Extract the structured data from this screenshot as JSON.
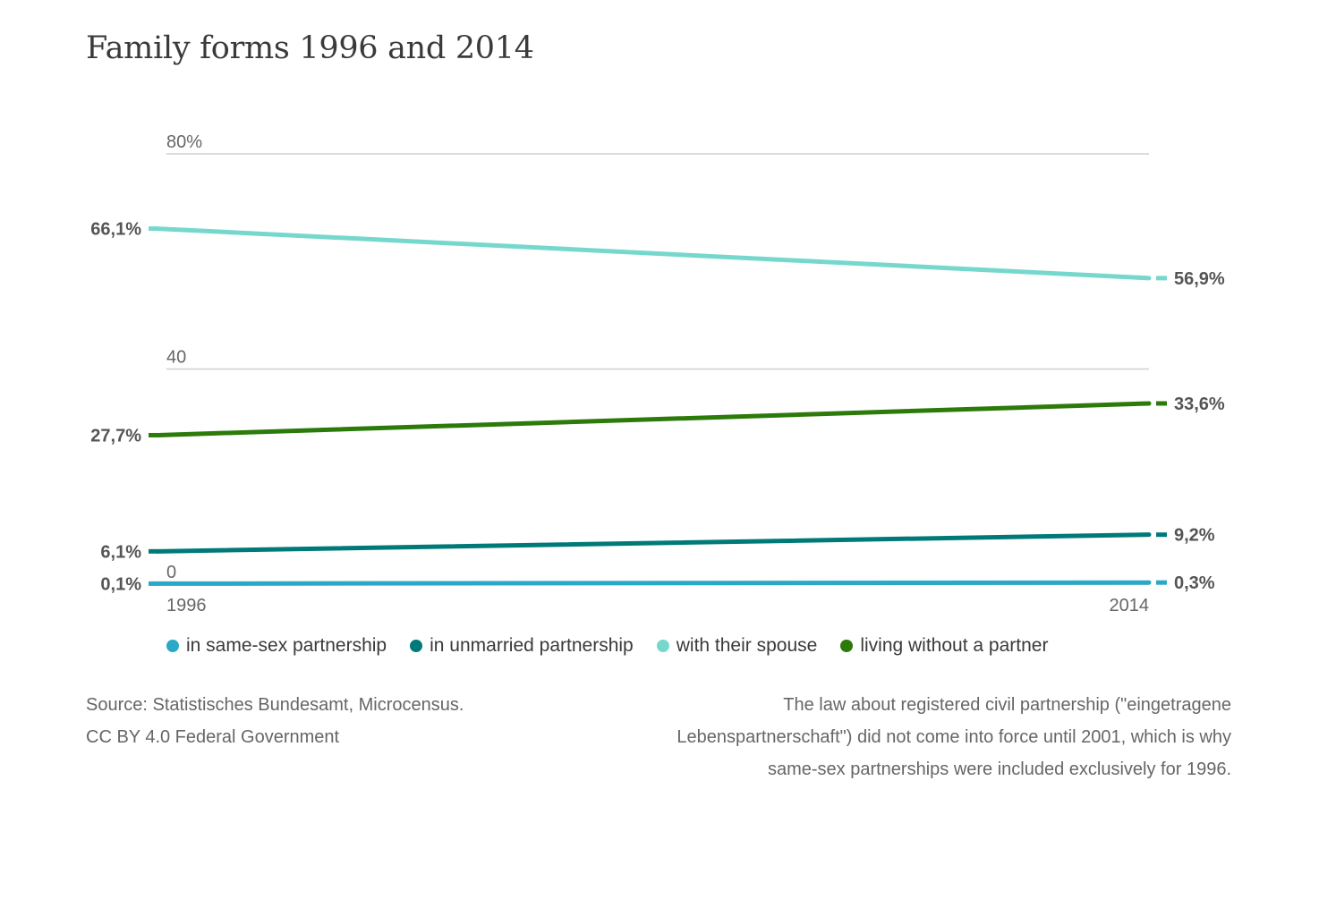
{
  "title": "Family forms 1996 and 2014",
  "chart_data": {
    "type": "line",
    "title": "Family forms 1996 and 2014",
    "x": [
      "1996",
      "2014"
    ],
    "ylim": [
      0,
      80
    ],
    "y_ticks": [
      {
        "value": 80,
        "label": "80%"
      },
      {
        "value": 40,
        "label": "40"
      },
      {
        "value": 0,
        "label": "0"
      }
    ],
    "grid": true,
    "legend_placement": "bottom",
    "series": [
      {
        "name": "in same-sex partnership",
        "color": "#2aa8c8",
        "values": [
          0.1,
          0.3
        ],
        "labels": [
          "0,1%",
          "0,3%"
        ]
      },
      {
        "name": "in unmarried partnership",
        "color": "#007a78",
        "values": [
          6.1,
          9.2
        ],
        "labels": [
          "6,1%",
          "9,2%"
        ]
      },
      {
        "name": "with their spouse",
        "color": "#76d8cc",
        "values": [
          66.1,
          56.9
        ],
        "labels": [
          "66,1%",
          "56,9%"
        ]
      },
      {
        "name": "living without a partner",
        "color": "#2c7a0a",
        "values": [
          27.7,
          33.6
        ],
        "labels": [
          "27,7%",
          "33,6%"
        ]
      }
    ]
  },
  "source": {
    "line1": "Source: Statistisches Bundesamt, Microcensus.",
    "line2": "CC BY 4.0 Federal Government"
  },
  "note": "The law about registered civil partnership (\"eingetragene Lebenspartnerschaft\") did not come into force until 2001, which is why same-sex partnerships were included exclusively for 1996."
}
